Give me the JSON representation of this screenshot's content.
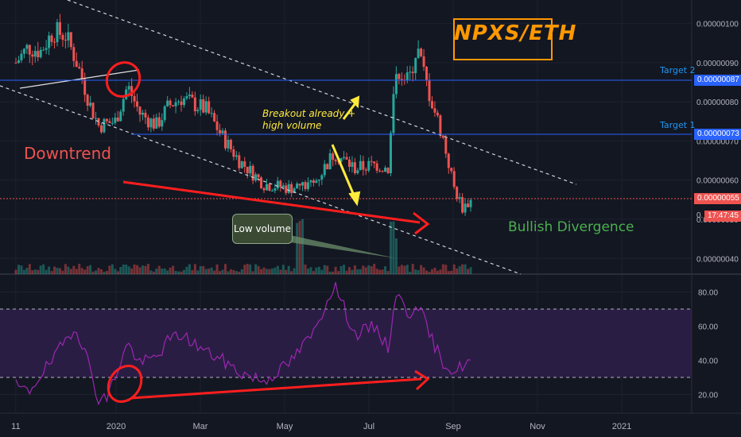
{
  "pair_label": "NPXS/ETH",
  "annotations": {
    "downtrend": "Downtrend",
    "breakout_line1": "Breakout already +",
    "breakout_line2": "high volume",
    "low_volume": "Low volume",
    "bullish_divergence": "Bullish Divergence",
    "target1": "Target 1",
    "target2": "Target 2"
  },
  "badges": {
    "target2_value": "0.00000087",
    "target1_value": "0.00000073",
    "last_price": "0.00000055",
    "countdown": "17:47:45",
    "countdown_prefix": "0."
  },
  "colors": {
    "background": "#131722",
    "bull_candle": "#26a69a",
    "bear_candle": "#ef5350",
    "target_line": "#2962ff",
    "rsi_line": "#9c27b0",
    "rsi_band": "#2a1d44",
    "annotation_red": "#ff1e1e",
    "annotation_yellow": "#ffeb3b",
    "bullish_text": "#4caf50",
    "title_orange": "#ff9800"
  },
  "chart_data": [
    {
      "type": "candlestick",
      "title": "NPXS/ETH",
      "y_axis_ticks": [
        "0.00000040",
        "0.00000050",
        "0.00000060",
        "0.00000070",
        "0.00000080",
        "0.00000090",
        "0.00000100"
      ],
      "ylim": [
        3.6e-07,
        1.06e-06
      ],
      "x_axis_ticks": [
        "11",
        "2020",
        "Mar",
        "May",
        "Jul",
        "Sep",
        "Nov",
        "2021"
      ],
      "close_path": [
        [
          0,
          9e-07
        ],
        [
          0.15,
          9.4e-07
        ],
        [
          0.3,
          9.3e-07
        ],
        [
          0.45,
          9.8e-07
        ],
        [
          0.6,
          9.7e-07
        ],
        [
          0.72,
          9.1e-07
        ],
        [
          0.8,
          8.6e-07
        ],
        [
          0.9,
          7.9e-07
        ],
        [
          1.0,
          7.4e-07
        ],
        [
          1.2,
          7.5e-07
        ],
        [
          1.35,
          8.4e-07
        ],
        [
          1.5,
          7.7e-07
        ],
        [
          1.7,
          7.4e-07
        ],
        [
          1.85,
          7.9e-07
        ],
        [
          2.0,
          8.1e-07
        ],
        [
          2.3,
          7.8e-07
        ],
        [
          2.5,
          7.1e-07
        ],
        [
          2.7,
          6.5e-07
        ],
        [
          3.0,
          5.9e-07
        ],
        [
          3.3,
          5.8e-07
        ],
        [
          3.6,
          5.9e-07
        ],
        [
          3.85,
          6.7e-07
        ],
        [
          4.1,
          6.3e-07
        ],
        [
          4.35,
          6.4e-07
        ],
        [
          4.5,
          6.3e-07
        ],
        [
          4.6,
          8.9e-07
        ],
        [
          4.75,
          8.5e-07
        ],
        [
          4.85,
          9.4e-07
        ],
        [
          5.0,
          8.2e-07
        ],
        [
          5.15,
          7.2e-07
        ],
        [
          5.3,
          5.8e-07
        ],
        [
          5.4,
          5.3e-07
        ],
        [
          5.52,
          5.5e-07
        ]
      ],
      "horizontal_lines": [
        {
          "label": "Target 2",
          "value": 8.7e-07
        },
        {
          "label": "Target 1",
          "value": 7.3e-07
        },
        {
          "label": "",
          "value": 5.5e-07
        }
      ],
      "last_price": 5.5e-07
    },
    {
      "type": "line",
      "series_kind": "RSI",
      "y_axis_ticks": [
        "20.00",
        "40.00",
        "60.00",
        "80.00"
      ],
      "ylim": [
        12,
        90
      ],
      "band": [
        30,
        70
      ],
      "values_path": [
        [
          0,
          25
        ],
        [
          0.15,
          21
        ],
        [
          0.3,
          32
        ],
        [
          0.45,
          40
        ],
        [
          0.6,
          52
        ],
        [
          0.72,
          60
        ],
        [
          0.8,
          50
        ],
        [
          0.9,
          35
        ],
        [
          1.0,
          17
        ],
        [
          1.1,
          18
        ],
        [
          1.35,
          50
        ],
        [
          1.5,
          38
        ],
        [
          1.7,
          42
        ],
        [
          1.85,
          52
        ],
        [
          2.0,
          55
        ],
        [
          2.3,
          45
        ],
        [
          2.5,
          40
        ],
        [
          2.7,
          33
        ],
        [
          3.0,
          28
        ],
        [
          3.3,
          38
        ],
        [
          3.6,
          56
        ],
        [
          3.85,
          85
        ],
        [
          4.1,
          55
        ],
        [
          4.35,
          60
        ],
        [
          4.5,
          47
        ],
        [
          4.6,
          80
        ],
        [
          4.75,
          66
        ],
        [
          4.85,
          75
        ],
        [
          5.0,
          55
        ],
        [
          5.15,
          40
        ],
        [
          5.3,
          33
        ],
        [
          5.4,
          37
        ],
        [
          5.52,
          40
        ]
      ]
    }
  ]
}
